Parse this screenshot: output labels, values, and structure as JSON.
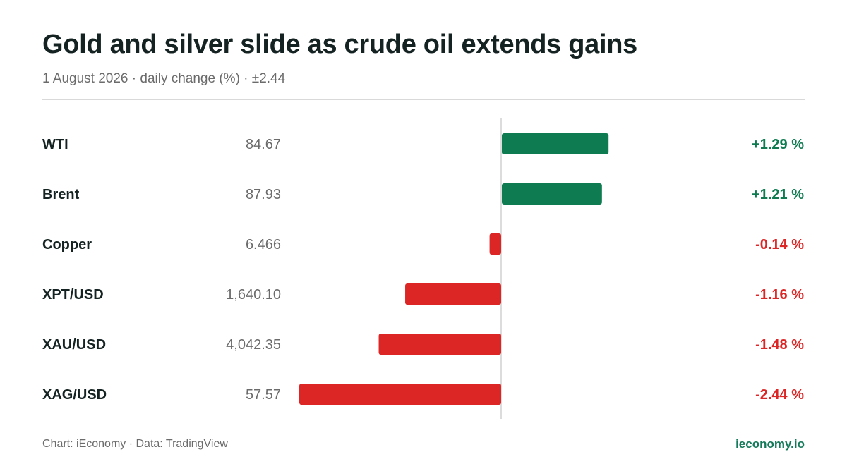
{
  "title": "Gold and silver slide as crude oil extends gains",
  "subtitle": "1 August 2026 · daily change (%) · ±2.44",
  "footer": {
    "credit": "Chart: iEconomy · Data: TradingView",
    "brand": "ieconomy.io"
  },
  "colors": {
    "positive": "#0f7b51",
    "negative": "#dc2626",
    "axis": "#d0d0d0",
    "label": "#152222",
    "price": "#6b6b6b"
  },
  "chart_data": {
    "type": "bar",
    "orientation": "horizontal",
    "xlim": [
      -2.44,
      2.44
    ],
    "categories": [
      "WTI",
      "Brent",
      "Copper",
      "XPT/USD",
      "XAU/USD",
      "XAG/USD"
    ],
    "prices": [
      "84.67",
      "87.93",
      "6.466",
      "1,640.10",
      "4,042.35",
      "57.57"
    ],
    "values": [
      1.29,
      1.21,
      -0.14,
      -1.16,
      -1.48,
      -2.44
    ],
    "value_labels": [
      "+1.29 %",
      "+1.21 %",
      "-0.14 %",
      "-1.16 %",
      "-1.48 %",
      "-2.44 %"
    ]
  }
}
